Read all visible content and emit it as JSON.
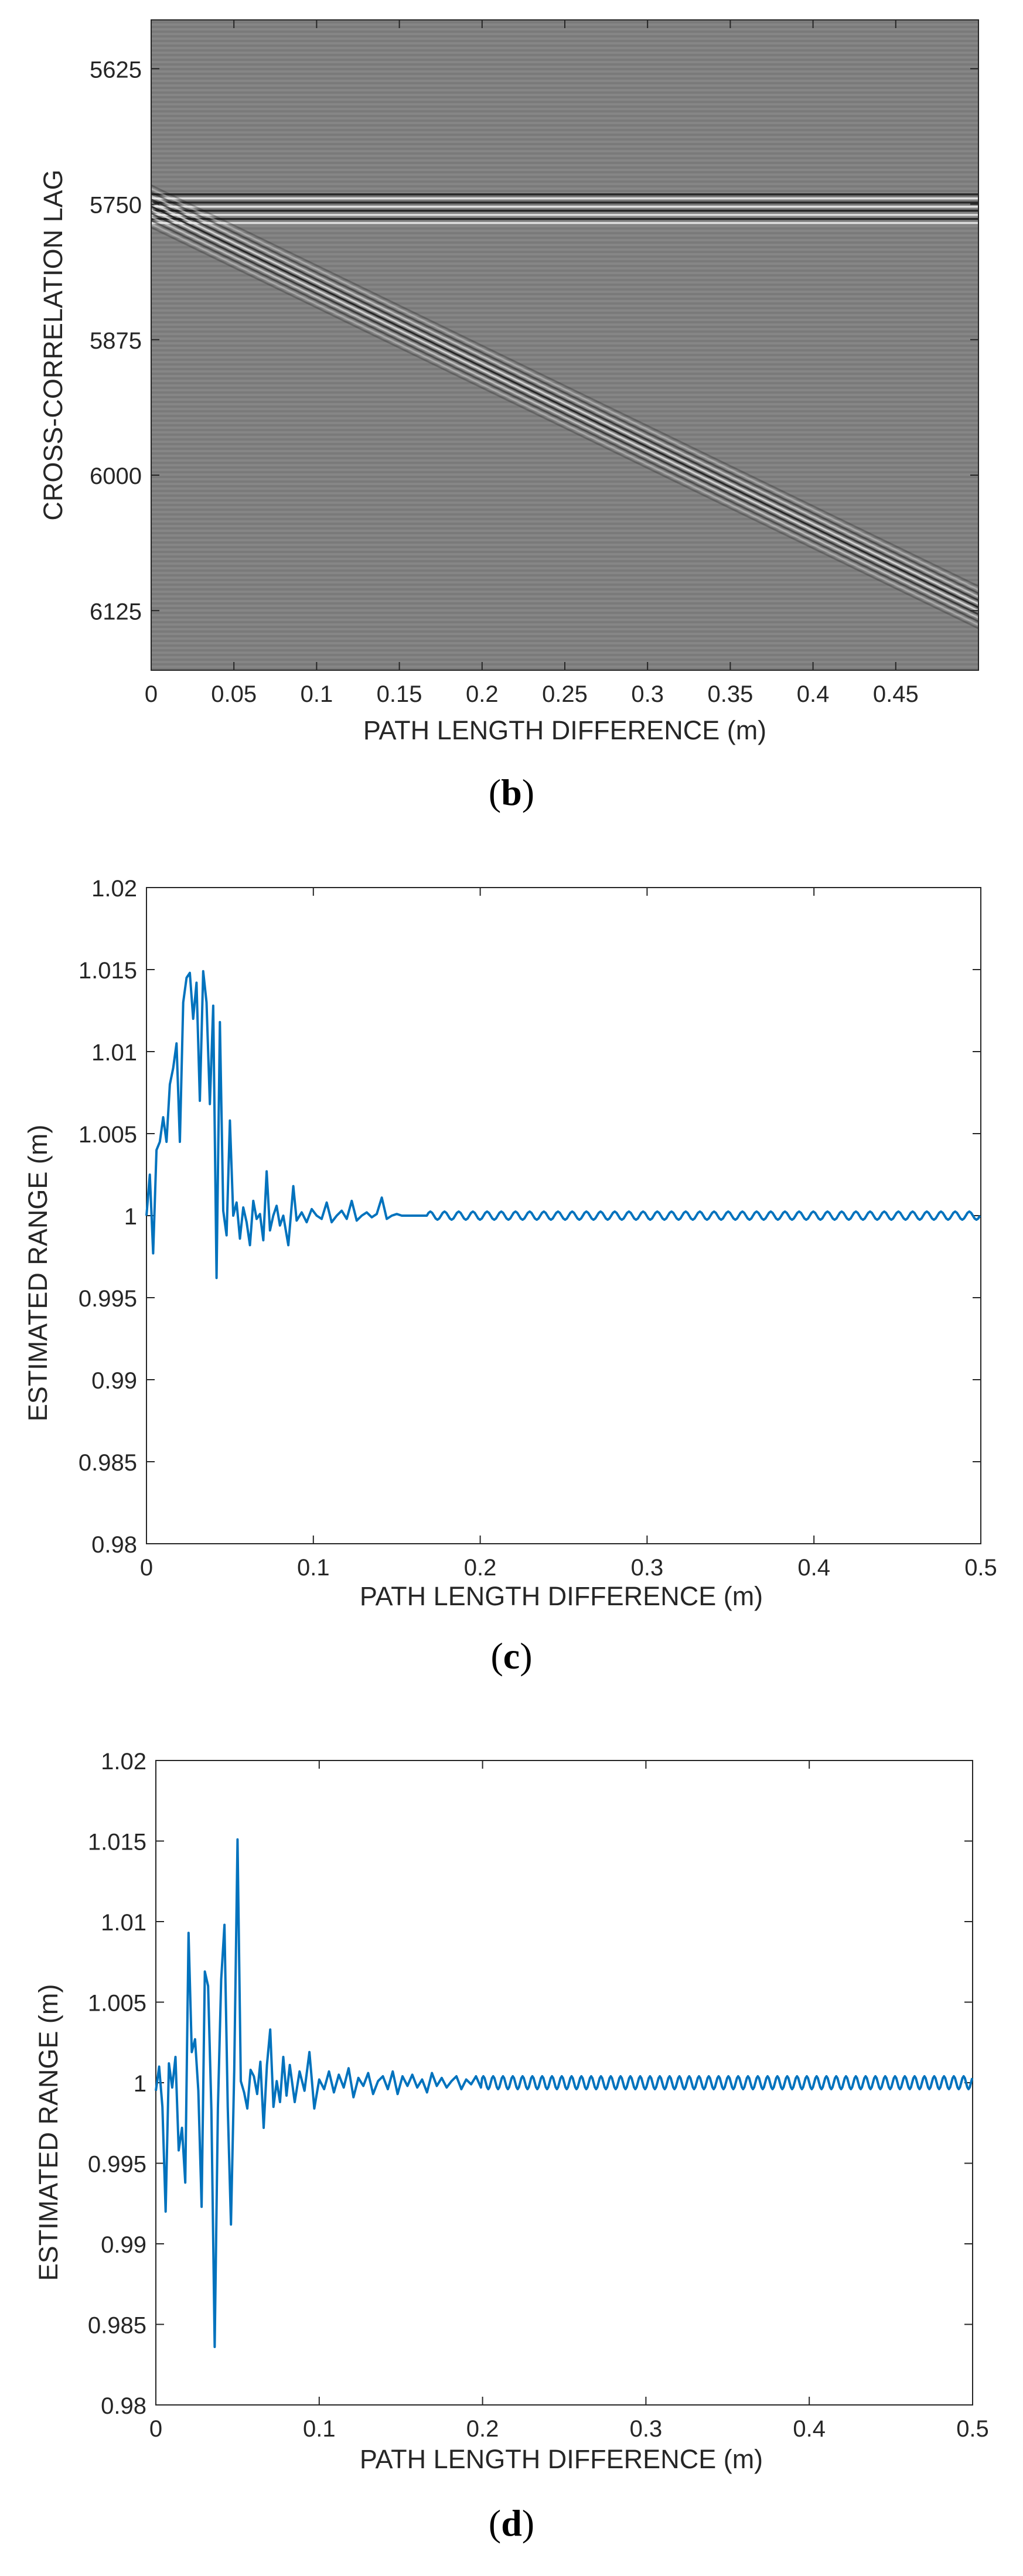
{
  "panels": [
    {
      "caption_open": "(",
      "caption_letter": "b",
      "caption_close": ")"
    },
    {
      "caption_open": "(",
      "caption_letter": "c",
      "caption_close": ")"
    },
    {
      "caption_open": "(",
      "caption_letter": "d",
      "caption_close": ")"
    }
  ],
  "chart_data": [
    {
      "type": "heatmap",
      "xlabel": "PATH LENGTH DIFFERENCE (m)",
      "ylabel": "CROSS-CORRELATION LAG",
      "xlim": [
        0,
        0.5
      ],
      "ylim": [
        5580,
        6180
      ],
      "y_reversed": true,
      "xticks": [
        0,
        0.05,
        0.1,
        0.15,
        0.2,
        0.25,
        0.3,
        0.35,
        0.4,
        0.45
      ],
      "xtick_labels": [
        "0",
        "0.05",
        "0.1",
        "0.15",
        "0.2",
        "0.25",
        "0.3",
        "0.35",
        "0.4",
        "0.45"
      ],
      "yticks": [
        5625,
        5750,
        5875,
        6000,
        6125
      ],
      "ytick_labels": [
        "5625",
        "5750",
        "5875",
        "6000",
        "6125"
      ],
      "colormap": "gray",
      "features": {
        "horizontal_band_lag": [
          5740,
          5770
        ],
        "diagonal_start": {
          "x": 0,
          "lag": 5752
        },
        "diagonal_end": {
          "x": 0.5,
          "lag": 6122
        }
      }
    },
    {
      "type": "line",
      "xlabel": "PATH LENGTH DIFFERENCE (m)",
      "ylabel": "ESTIMATED RANGE (m)",
      "xlim": [
        0,
        0.5
      ],
      "ylim": [
        0.98,
        1.02
      ],
      "xticks": [
        0,
        0.1,
        0.2,
        0.3,
        0.4,
        0.5
      ],
      "xtick_labels": [
        "0",
        "0.1",
        "0.2",
        "0.3",
        "0.4",
        "0.5"
      ],
      "yticks": [
        0.98,
        0.985,
        0.99,
        0.995,
        1,
        1.005,
        1.01,
        1.015,
        1.02
      ],
      "ytick_labels": [
        "0.98",
        "0.985",
        "0.99",
        "0.995",
        "1",
        "1.005",
        "1.01",
        "1.015",
        "1.02"
      ],
      "color": "#0072BD",
      "series": [
        {
          "x": [
            0,
            0.002,
            0.004,
            0.006,
            0.008,
            0.01,
            0.012,
            0.014,
            0.016,
            0.018,
            0.02,
            0.022,
            0.024,
            0.026,
            0.028,
            0.03,
            0.032,
            0.034,
            0.036,
            0.038,
            0.04,
            0.042,
            0.044,
            0.046,
            0.048,
            0.05,
            0.052,
            0.054,
            0.056,
            0.058,
            0.06,
            0.062,
            0.064,
            0.066,
            0.068,
            0.07,
            0.072,
            0.074,
            0.076,
            0.078,
            0.08,
            0.082,
            0.085,
            0.088,
            0.09,
            0.093,
            0.096,
            0.099,
            0.102,
            0.105,
            0.108,
            0.111,
            0.114,
            0.117,
            0.12,
            0.123,
            0.126,
            0.129,
            0.132,
            0.135,
            0.138,
            0.141,
            0.144,
            0.147,
            0.15,
            0.153,
            0.156,
            0.159,
            0.162,
            0.165,
            0.168
          ],
          "y": [
            1,
            1.0025,
            0.9977,
            1.004,
            1.0045,
            1.006,
            1.0045,
            1.008,
            1.009,
            1.0105,
            1.0045,
            1.013,
            1.0145,
            1.0148,
            1.012,
            1.0142,
            1.007,
            1.0149,
            1.013,
            1.0068,
            1.0128,
            0.9962,
            1.0118,
            1.0003,
            0.9988,
            1.0058,
            1.0,
            1.0008,
            0.9986,
            1.0005,
            0.9996,
            0.9982,
            1.0009,
            0.9998,
            1.0001,
            0.9985,
            1.0027,
            0.9991,
            1.0,
            1.0006,
            0.9994,
            1.0,
            0.9982,
            1.0018,
            0.9997,
            1.0002,
            0.9996,
            1.0004,
            1.0,
            0.9998,
            1.0008,
            0.9996,
            1.0,
            1.0003,
            0.9998,
            1.0009,
            0.9997,
            1.0,
            1.0002,
            0.9999,
            1.0001,
            1.0011,
            0.9998,
            1.0,
            1.0001,
            1.0,
            1.0,
            1.0,
            1.0,
            1.0,
            1.0
          ]
        }
      ],
      "tail": {
        "from": 0.168,
        "to": 0.5,
        "value": 1.0,
        "ripple_amplitude": 0.00025,
        "ripple_period": 0.0085
      }
    },
    {
      "type": "line",
      "xlabel": "PATH LENGTH DIFFERENCE (m)",
      "ylabel": "ESTIMATED RANGE (m)",
      "xlim": [
        0,
        0.5
      ],
      "ylim": [
        0.98,
        1.02
      ],
      "xticks": [
        0,
        0.1,
        0.2,
        0.3,
        0.4,
        0.5
      ],
      "xtick_labels": [
        "0",
        "0.1",
        "0.2",
        "0.3",
        "0.4",
        "0.5"
      ],
      "yticks": [
        0.98,
        0.985,
        0.99,
        0.995,
        1,
        1.005,
        1.01,
        1.015,
        1.02
      ],
      "ytick_labels": [
        "0.98",
        "0.985",
        "0.99",
        "0.995",
        "1",
        "1.005",
        "1.01",
        "1.015",
        "1.02"
      ],
      "color": "#0072BD",
      "series": [
        {
          "x": [
            0,
            0.002,
            0.004,
            0.006,
            0.008,
            0.01,
            0.012,
            0.014,
            0.016,
            0.018,
            0.02,
            0.022,
            0.024,
            0.026,
            0.028,
            0.03,
            0.032,
            0.034,
            0.036,
            0.038,
            0.04,
            0.042,
            0.044,
            0.046,
            0.048,
            0.05,
            0.052,
            0.054,
            0.056,
            0.058,
            0.06,
            0.062,
            0.064,
            0.066,
            0.068,
            0.07,
            0.072,
            0.074,
            0.076,
            0.078,
            0.08,
            0.082,
            0.085,
            0.088,
            0.091,
            0.094,
            0.097,
            0.1,
            0.103,
            0.106,
            0.109,
            0.112,
            0.115,
            0.118,
            0.121,
            0.124,
            0.127,
            0.13,
            0.133,
            0.136,
            0.139,
            0.142,
            0.145,
            0.148,
            0.151,
            0.154,
            0.157,
            0.16,
            0.163,
            0.166,
            0.169,
            0.172,
            0.175,
            0.178,
            0.181,
            0.184,
            0.187,
            0.19,
            0.193,
            0.196,
            0.199
          ],
          "y": [
            0.9995,
            1.001,
            0.9985,
            0.992,
            1.0012,
            0.9997,
            1.0016,
            0.9958,
            0.9972,
            0.9938,
            1.0093,
            1.0019,
            1.0027,
            0.9995,
            0.9923,
            1.0069,
            1.006,
            0.9983,
            0.9836,
            0.9984,
            1.0064,
            1.0098,
            0.9985,
            0.9912,
            1.0008,
            1.0151,
            1.0001,
            0.9994,
            0.9984,
            1.0008,
            1.0004,
            0.9993,
            1.0013,
            0.9972,
            1.0011,
            1.0033,
            0.9985,
            1.0001,
            0.9988,
            1.0016,
            0.9992,
            1.0011,
            0.9988,
            1.0007,
            0.9995,
            1.0019,
            0.9984,
            1.0002,
            0.9996,
            1.0007,
            0.9994,
            1.0005,
            0.9997,
            1.0009,
            0.9991,
            1.0003,
            0.9998,
            1.0006,
            0.9993,
            1.0001,
            1.0004,
            0.9996,
            1.0007,
            0.9993,
            1.0004,
            0.9998,
            1.0005,
            0.9997,
            1.0002,
            0.9994,
            1.0006,
            0.9998,
            1.0003,
            0.9997,
            1.0001,
            1.0004,
            0.9996,
            1.0002,
            0.9999,
            1.0004,
            0.9997
          ]
        }
      ],
      "tail": {
        "from": 0.199,
        "to": 0.5,
        "value": 1.0,
        "ripple_amplitude": 0.0004,
        "ripple_period": 0.006
      }
    }
  ]
}
